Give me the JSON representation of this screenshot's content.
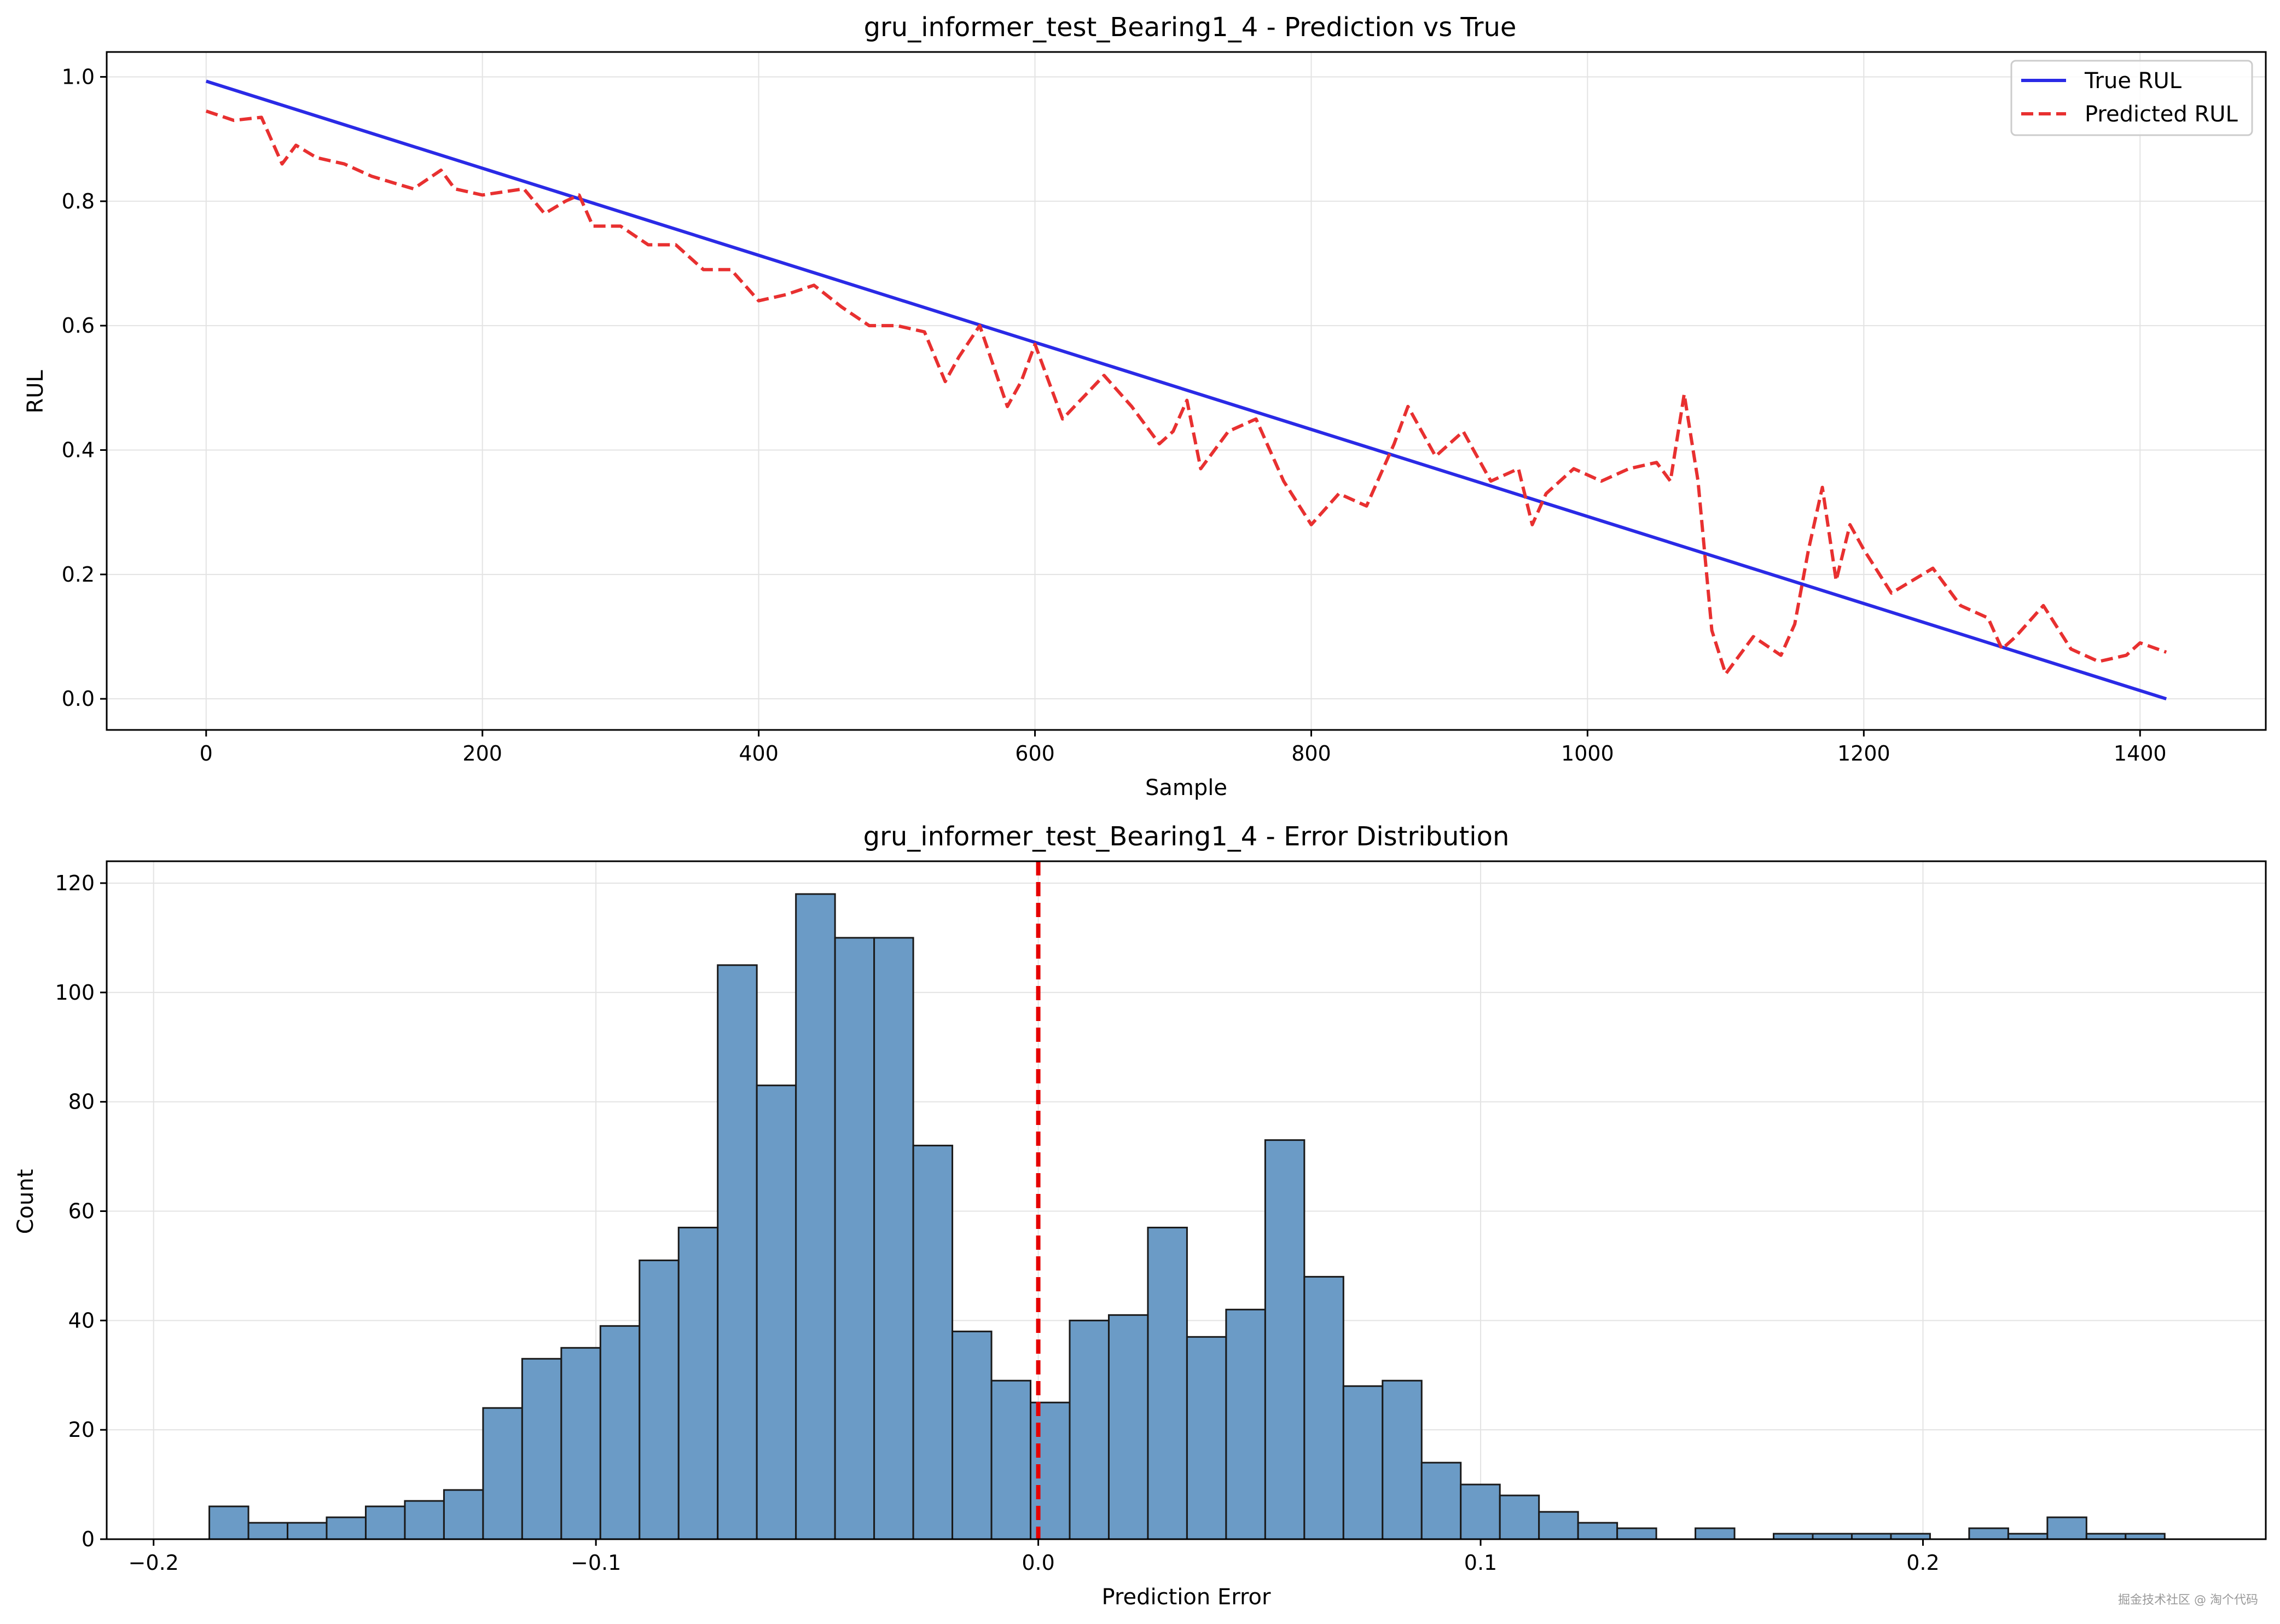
{
  "chart_data": [
    {
      "type": "line",
      "title": "gru_informer_test_Bearing1_4 - Prediction vs True",
      "xlabel": "Sample",
      "ylabel": "RUL",
      "xlim": [
        -72,
        1491
      ],
      "ylim": [
        -0.05,
        1.04
      ],
      "xticks": [
        0,
        200,
        400,
        600,
        800,
        1000,
        1200,
        1400
      ],
      "xtick_labels": [
        "0",
        "200",
        "400",
        "600",
        "800",
        "1000",
        "1200",
        "1400"
      ],
      "yticks": [
        0.0,
        0.2,
        0.4,
        0.6,
        0.8,
        1.0
      ],
      "ytick_labels": [
        "0.0",
        "0.2",
        "0.4",
        "0.6",
        "0.8",
        "1.0"
      ],
      "grid": true,
      "legend": "top-right",
      "series": [
        {
          "name": "True RUL",
          "style": "solid",
          "color": "#2a2ae6",
          "x": [
            0,
            1419
          ],
          "y": [
            0.993,
            0.0
          ]
        },
        {
          "name": "Predicted RUL",
          "style": "dashed",
          "color": "#e83030",
          "x": [
            0,
            20,
            40,
            55,
            65,
            80,
            100,
            120,
            150,
            170,
            180,
            200,
            230,
            245,
            260,
            270,
            280,
            300,
            320,
            340,
            360,
            380,
            400,
            420,
            440,
            460,
            480,
            500,
            520,
            535,
            545,
            560,
            580,
            590,
            600,
            620,
            650,
            670,
            690,
            700,
            710,
            720,
            740,
            760,
            780,
            800,
            820,
            840,
            860,
            870,
            890,
            910,
            930,
            950,
            960,
            970,
            990,
            1010,
            1030,
            1050,
            1060,
            1070,
            1080,
            1090,
            1100,
            1120,
            1140,
            1150,
            1160,
            1170,
            1180,
            1190,
            1200,
            1220,
            1250,
            1270,
            1290,
            1300,
            1310,
            1330,
            1350,
            1370,
            1390,
            1400,
            1419
          ],
          "y": [
            0.945,
            0.93,
            0.935,
            0.86,
            0.89,
            0.87,
            0.86,
            0.84,
            0.82,
            0.85,
            0.82,
            0.81,
            0.82,
            0.78,
            0.8,
            0.81,
            0.76,
            0.76,
            0.73,
            0.73,
            0.69,
            0.69,
            0.64,
            0.65,
            0.665,
            0.63,
            0.6,
            0.6,
            0.59,
            0.51,
            0.55,
            0.6,
            0.47,
            0.51,
            0.57,
            0.45,
            0.52,
            0.47,
            0.41,
            0.43,
            0.48,
            0.37,
            0.43,
            0.45,
            0.35,
            0.28,
            0.33,
            0.31,
            0.41,
            0.47,
            0.39,
            0.43,
            0.35,
            0.37,
            0.28,
            0.33,
            0.37,
            0.35,
            0.37,
            0.38,
            0.35,
            0.49,
            0.35,
            0.11,
            0.04,
            0.1,
            0.07,
            0.12,
            0.24,
            0.34,
            0.19,
            0.28,
            0.24,
            0.17,
            0.21,
            0.15,
            0.13,
            0.08,
            0.1,
            0.15,
            0.08,
            0.06,
            0.07,
            0.09,
            0.075
          ]
        }
      ]
    },
    {
      "type": "histogram",
      "title": "gru_informer_test_Bearing1_4 - Error Distribution",
      "xlabel": "Prediction Error",
      "ylabel": "Count",
      "xlim": [
        -0.2106,
        0.2775
      ],
      "ylim": [
        0,
        124
      ],
      "xticks": [
        -0.2,
        -0.1,
        0.0,
        0.1,
        0.2
      ],
      "xtick_labels": [
        "−0.2",
        "−0.1",
        "0.0",
        "0.1",
        "0.2"
      ],
      "yticks": [
        0,
        20,
        40,
        60,
        80,
        100,
        120
      ],
      "ytick_labels": [
        "0",
        "20",
        "40",
        "60",
        "80",
        "100",
        "120"
      ],
      "grid": true,
      "bin_start": -0.1874,
      "bin_width": 0.008841,
      "counts": [
        6,
        3,
        3,
        4,
        6,
        7,
        9,
        24,
        33,
        35,
        39,
        51,
        57,
        105,
        83,
        118,
        110,
        110,
        72,
        38,
        29,
        25,
        40,
        41,
        57,
        37,
        42,
        73,
        48,
        28,
        29,
        14,
        10,
        8,
        5,
        3,
        2,
        0,
        2,
        0,
        1,
        1,
        1,
        1,
        0,
        2,
        1,
        4,
        1,
        1
      ],
      "bar_color": "#6b9bc6",
      "reference_line": {
        "x": 0.0,
        "color": "#e60000",
        "style": "dashed"
      }
    }
  ],
  "watermark": "掘金技术社区 @ 淘个代码"
}
